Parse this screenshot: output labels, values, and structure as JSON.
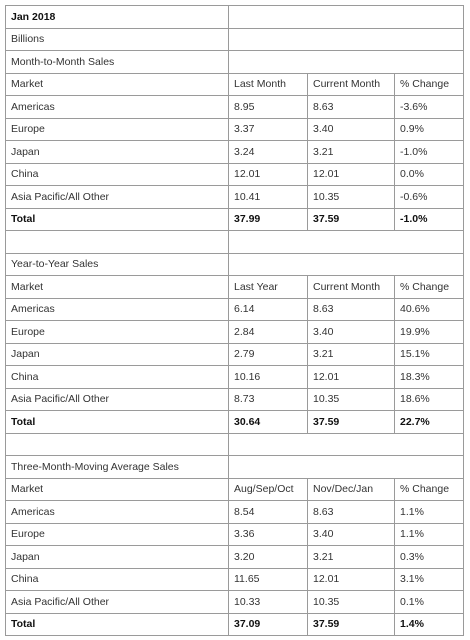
{
  "header": {
    "title": "Jan 2018",
    "unit": "Billions"
  },
  "sections": [
    {
      "title": "Month-to-Month Sales",
      "columns": [
        "Market",
        "Last Month",
        "Current Month",
        "% Change"
      ],
      "rows": [
        [
          "Americas",
          "8.95",
          "8.63",
          "-3.6%"
        ],
        [
          "Europe",
          "3.37",
          "3.40",
          "0.9%"
        ],
        [
          "Japan",
          "3.24",
          "3.21",
          "-1.0%"
        ],
        [
          "China",
          "12.01",
          "12.01",
          "0.0%"
        ],
        [
          "Asia Pacific/All Other",
          "10.41",
          "10.35",
          "-0.6%"
        ]
      ],
      "total": [
        "Total",
        "37.99",
        "37.59",
        "-1.0%"
      ]
    },
    {
      "title": "Year-to-Year Sales",
      "columns": [
        "Market",
        "Last Year",
        "Current Month",
        "% Change"
      ],
      "rows": [
        [
          "Americas",
          "6.14",
          "8.63",
          "40.6%"
        ],
        [
          "Europe",
          "2.84",
          "3.40",
          "19.9%"
        ],
        [
          "Japan",
          "2.79",
          "3.21",
          "15.1%"
        ],
        [
          "China",
          "10.16",
          "12.01",
          "18.3%"
        ],
        [
          "Asia Pacific/All Other",
          "8.73",
          "10.35",
          "18.6%"
        ]
      ],
      "total": [
        "Total",
        "30.64",
        "37.59",
        "22.7%"
      ]
    },
    {
      "title": "Three-Month-Moving Average Sales",
      "columns": [
        "Market",
        "Aug/Sep/Oct",
        "Nov/Dec/Jan",
        "% Change"
      ],
      "rows": [
        [
          "Americas",
          "8.54",
          "8.63",
          "1.1%"
        ],
        [
          "Europe",
          "3.36",
          "3.40",
          "1.1%"
        ],
        [
          "Japan",
          "3.20",
          "3.21",
          "0.3%"
        ],
        [
          "China",
          "11.65",
          "12.01",
          "3.1%"
        ],
        [
          "Asia Pacific/All Other",
          "10.33",
          "10.35",
          "0.1%"
        ]
      ],
      "total": [
        "Total",
        "37.09",
        "37.59",
        "1.4%"
      ]
    }
  ]
}
